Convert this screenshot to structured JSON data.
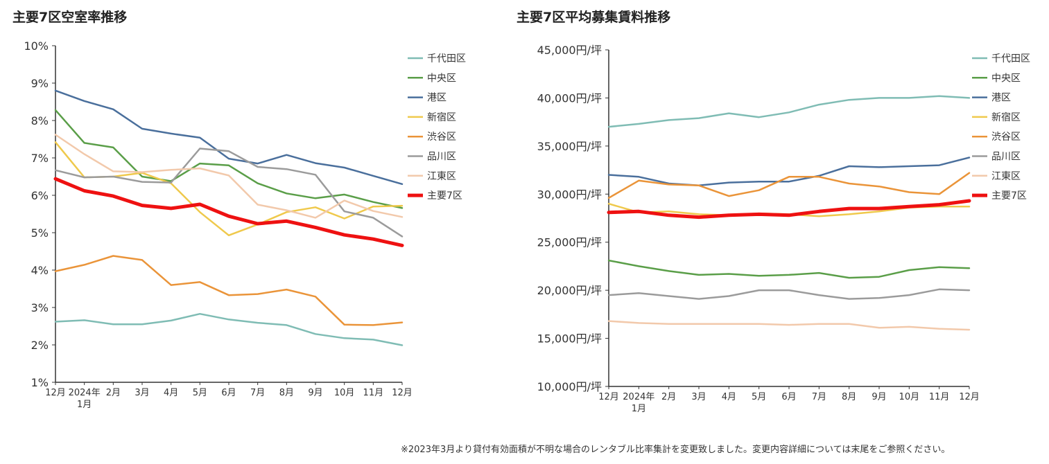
{
  "footnote": "※2023年3月より貸付有効面積が不明な場合のレンタブル比率集計を変更致しました。変更内容詳細については末尾をご参照ください。",
  "chart_data": [
    {
      "type": "line",
      "title": "主要7区空室率推移",
      "ylim": [
        1,
        10
      ],
      "yticks": [
        "10%",
        "9%",
        "8%",
        "7%",
        "6%",
        "5%",
        "4%",
        "3%",
        "2%",
        "1%"
      ],
      "categories": [
        "12月",
        "2024年\n1月",
        "2月",
        "3月",
        "4月",
        "5月",
        "6月",
        "7月",
        "8月",
        "9月",
        "10月",
        "11月",
        "12月"
      ],
      "legend_position": "right",
      "series": [
        {
          "name": "千代田区",
          "color": "#7fbcb4",
          "width": 2.5,
          "values": [
            2.62,
            2.66,
            2.55,
            2.55,
            2.65,
            2.83,
            2.68,
            2.59,
            2.53,
            2.29,
            2.18,
            2.14,
            1.99
          ]
        },
        {
          "name": "中央区",
          "color": "#5a9e48",
          "width": 2.5,
          "values": [
            8.28,
            7.4,
            7.28,
            6.5,
            6.38,
            6.85,
            6.8,
            6.32,
            6.05,
            5.92,
            6.02,
            5.82,
            5.66
          ]
        },
        {
          "name": "港区",
          "color": "#4a6f9c",
          "width": 2.5,
          "values": [
            8.8,
            8.52,
            8.3,
            7.78,
            7.65,
            7.54,
            6.98,
            6.85,
            7.08,
            6.86,
            6.74,
            6.52,
            6.3
          ]
        },
        {
          "name": "新宿区",
          "color": "#efc94c",
          "width": 2.5,
          "values": [
            7.42,
            6.48,
            6.5,
            6.6,
            6.32,
            5.55,
            4.93,
            5.22,
            5.55,
            5.68,
            5.38,
            5.7,
            5.72
          ]
        },
        {
          "name": "渋谷区",
          "color": "#ea9439",
          "width": 2.5,
          "values": [
            3.97,
            4.14,
            4.38,
            4.27,
            3.6,
            3.68,
            3.33,
            3.36,
            3.48,
            3.29,
            2.54,
            2.53,
            2.6
          ]
        },
        {
          "name": "品川区",
          "color": "#9b9b9b",
          "width": 2.5,
          "values": [
            6.67,
            6.48,
            6.5,
            6.36,
            6.34,
            7.25,
            7.18,
            6.76,
            6.7,
            6.55,
            5.57,
            5.4,
            4.9
          ]
        },
        {
          "name": "江東区",
          "color": "#f2c9ab",
          "width": 2.5,
          "values": [
            7.62,
            7.1,
            6.64,
            6.62,
            6.68,
            6.72,
            6.53,
            5.75,
            5.6,
            5.4,
            5.86,
            5.58,
            5.42
          ]
        },
        {
          "name": "主要7区",
          "color": "#ee1111",
          "width": 5,
          "values": [
            6.44,
            6.12,
            5.98,
            5.73,
            5.65,
            5.76,
            5.44,
            5.24,
            5.31,
            5.14,
            4.94,
            4.83,
            4.66
          ]
        }
      ]
    },
    {
      "type": "line",
      "title": "主要7区平均募集賃料推移",
      "ylim": [
        10000,
        45000
      ],
      "yticks": [
        "45,000円/坪",
        "40,000円/坪",
        "35,000円/坪",
        "30,000円/坪",
        "25,000円/坪",
        "20,000円/坪",
        "15,000円/坪",
        "10,000円/坪"
      ],
      "categories": [
        "12月",
        "2024年\n1月",
        "2月",
        "3月",
        "4月",
        "5月",
        "6月",
        "7月",
        "8月",
        "9月",
        "10月",
        "11月",
        "12月"
      ],
      "legend_position": "right",
      "series": [
        {
          "name": "千代田区",
          "color": "#7fbcb4",
          "width": 2.5,
          "values": [
            37000,
            37300,
            37700,
            37900,
            38400,
            38000,
            38500,
            39300,
            39800,
            40000,
            40000,
            40200,
            40000
          ]
        },
        {
          "name": "中央区",
          "color": "#5a9e48",
          "width": 2.5,
          "values": [
            23100,
            22500,
            22000,
            21600,
            21700,
            21500,
            21600,
            21800,
            21300,
            21400,
            22100,
            22400,
            22300
          ]
        },
        {
          "name": "港区",
          "color": "#4a6f9c",
          "width": 2.5,
          "values": [
            32000,
            31800,
            31100,
            30900,
            31200,
            31300,
            31300,
            31900,
            32900,
            32800,
            32900,
            33000,
            33800
          ]
        },
        {
          "name": "新宿区",
          "color": "#efc94c",
          "width": 2.5,
          "values": [
            29000,
            28100,
            28200,
            27900,
            27800,
            28000,
            27900,
            27700,
            27900,
            28200,
            28600,
            28700,
            28700
          ]
        },
        {
          "name": "渋谷区",
          "color": "#ea9439",
          "width": 2.5,
          "values": [
            29600,
            31400,
            31000,
            30900,
            29800,
            30400,
            31800,
            31800,
            31100,
            30800,
            30200,
            30000,
            32200
          ]
        },
        {
          "name": "品川区",
          "color": "#9b9b9b",
          "width": 2.5,
          "values": [
            19500,
            19700,
            19400,
            19100,
            19400,
            20000,
            20000,
            19500,
            19100,
            19200,
            19500,
            20100,
            20000
          ]
        },
        {
          "name": "江東区",
          "color": "#f2c9ab",
          "width": 2.5,
          "values": [
            16800,
            16600,
            16500,
            16500,
            16500,
            16500,
            16400,
            16500,
            16500,
            16100,
            16200,
            16000,
            15900
          ]
        },
        {
          "name": "主要7区",
          "color": "#ee1111",
          "width": 5,
          "values": [
            28100,
            28200,
            27800,
            27600,
            27800,
            27900,
            27800,
            28200,
            28500,
            28500,
            28700,
            28900,
            29300
          ]
        }
      ]
    }
  ]
}
